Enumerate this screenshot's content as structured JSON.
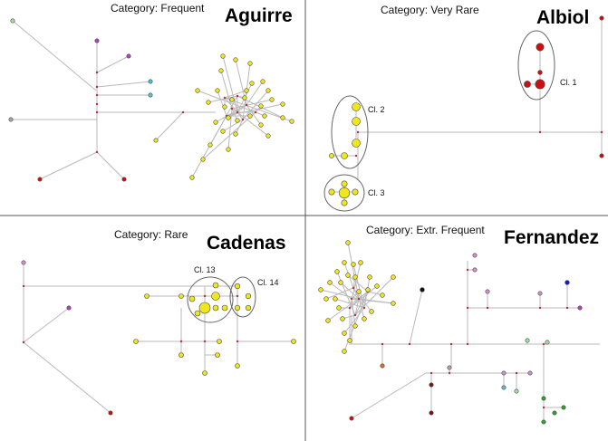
{
  "colors": {
    "yellow": "#f0e61e",
    "red": "#cc1010",
    "purple": "#b040c0",
    "cyan": "#40c8d0",
    "grey": "#a8a8a8",
    "green": "#30a030",
    "ltgreen": "#a0e0a0",
    "pink": "#d090d0",
    "blue": "#1020c0",
    "black": "#101010",
    "orange": "#e07020",
    "teal": "#60c0c0",
    "darkred": "#801010"
  },
  "panels": [
    {
      "id": "aguirre",
      "category": "Category: Frequent",
      "name": "Aguirre",
      "cluster_labels": []
    },
    {
      "id": "albiol",
      "category": "Category: Very Rare",
      "name": "Albiol",
      "cluster_labels": [
        "Cl. 1",
        "Cl. 2",
        "Cl. 3"
      ]
    },
    {
      "id": "cadenas",
      "category": "Category: Rare",
      "name": "Cadenas",
      "cluster_labels": [
        "Cl. 13",
        "Cl. 14"
      ]
    },
    {
      "id": "fernandez",
      "category": "Category: Extr. Frequent",
      "name": "Fernandez",
      "cluster_labels": []
    }
  ]
}
